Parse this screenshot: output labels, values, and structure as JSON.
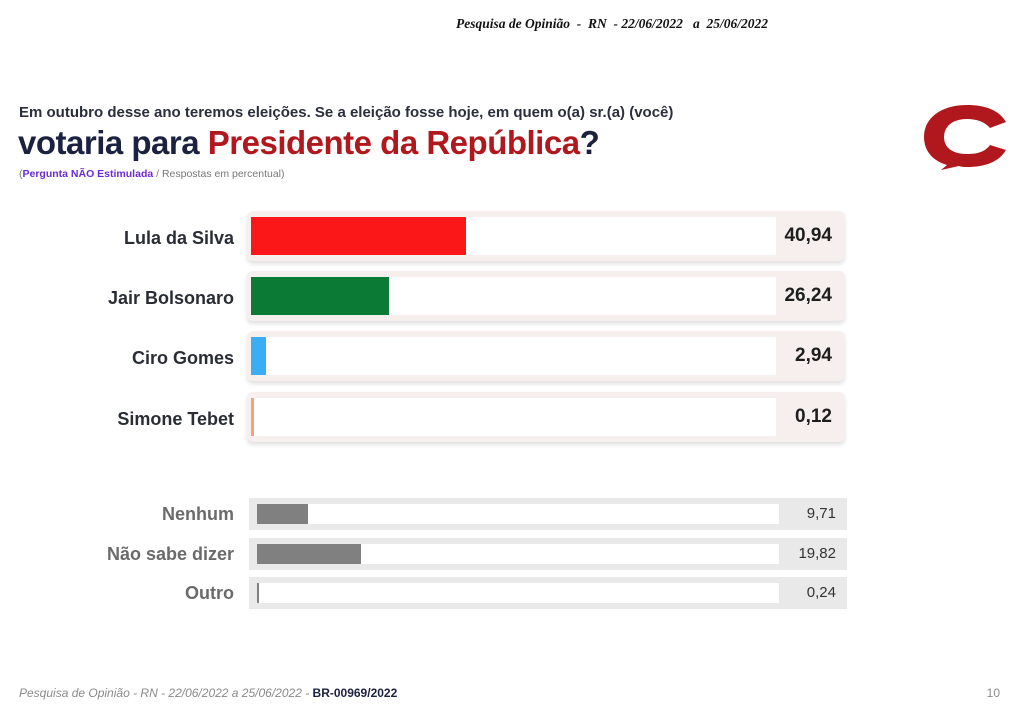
{
  "header": {
    "text": "Pesquisa de Opinião  -  RN  - 22/06/2022   a  25/06/2022"
  },
  "question": {
    "line1": "Em outubro desse ano teremos eleições. Se a eleição fosse hoje, em quem o(a) sr.(a) (você)",
    "line2_prefix": "votaria para ",
    "line2_highlight": "Presidente da República",
    "line2_suffix": "?"
  },
  "note": {
    "open": "(",
    "emphasis": "Pergunta NÃO Estimulada",
    "rest": " / Respostas em percentual)"
  },
  "colors": {
    "brand": "#b0181e",
    "navy": "#1b2240",
    "lula": "#fb1717",
    "bolsonaro": "#0b7a34",
    "ciro": "#3aaef5",
    "simone": "#f4a27a",
    "others": "#808080"
  },
  "chart_data": [
    {
      "type": "bar",
      "orientation": "horizontal",
      "categories": [
        "Lula da Silva",
        "Jair Bolsonaro",
        "Ciro Gomes",
        "Simone Tebet"
      ],
      "values": [
        40.94,
        26.24,
        2.94,
        0.12
      ],
      "labels": [
        "40,94",
        "26,24",
        "2,94",
        "0,12"
      ],
      "colors": [
        "#fb1717",
        "#0b7a34",
        "#3aaef5",
        "#f4a27a"
      ],
      "xlim": [
        0,
        100
      ]
    },
    {
      "type": "bar",
      "orientation": "horizontal",
      "categories": [
        "Nenhum",
        "Não sabe dizer",
        "Outro"
      ],
      "values": [
        9.71,
        19.82,
        0.24
      ],
      "labels": [
        "9,71",
        "19,82",
        "0,24"
      ],
      "colors": [
        "#808080",
        "#808080",
        "#808080"
      ],
      "xlim": [
        0,
        100
      ]
    }
  ],
  "footer": {
    "text": "Pesquisa de Opinião  -  RN - 22/06/2022 a  25/06/2022 - ",
    "code": "BR-00969/2022"
  },
  "page_number": "10"
}
